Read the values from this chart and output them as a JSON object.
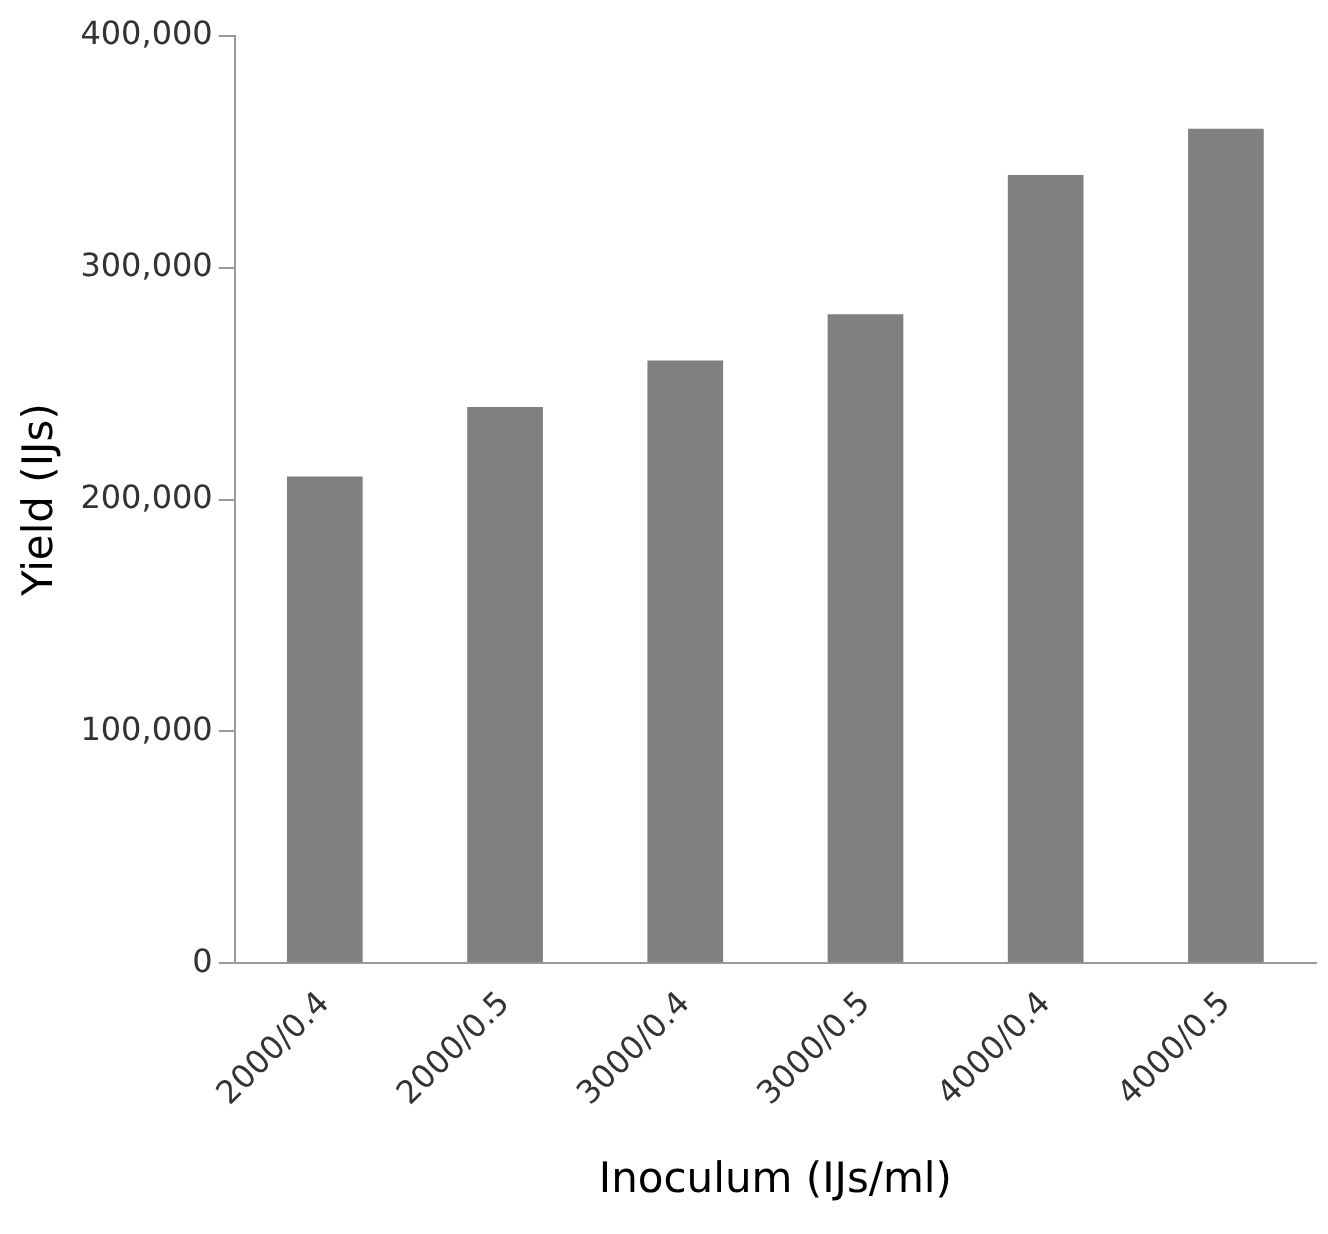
{
  "chart_data": {
    "type": "bar",
    "xlabel": "Inoculum (IJs/ml)",
    "ylabel": "Yield (IJs)",
    "categories": [
      "2000/0.4",
      "2000/0.5",
      "3000/0.4",
      "3000/0.5",
      "4000/0.4",
      "4000/0.5"
    ],
    "values": [
      210000,
      240000,
      260000,
      280000,
      340000,
      360000
    ],
    "color": "#808080",
    "ylim": [
      0,
      400000
    ],
    "yticks": [
      {
        "value": 0,
        "label": "0"
      },
      {
        "value": 100000,
        "label": "100,000"
      },
      {
        "value": 200000,
        "label": "200,000"
      },
      {
        "value": 300000,
        "label": "300,000"
      },
      {
        "value": 400000,
        "label": "400,000"
      }
    ],
    "grid": false,
    "legend": false
  }
}
